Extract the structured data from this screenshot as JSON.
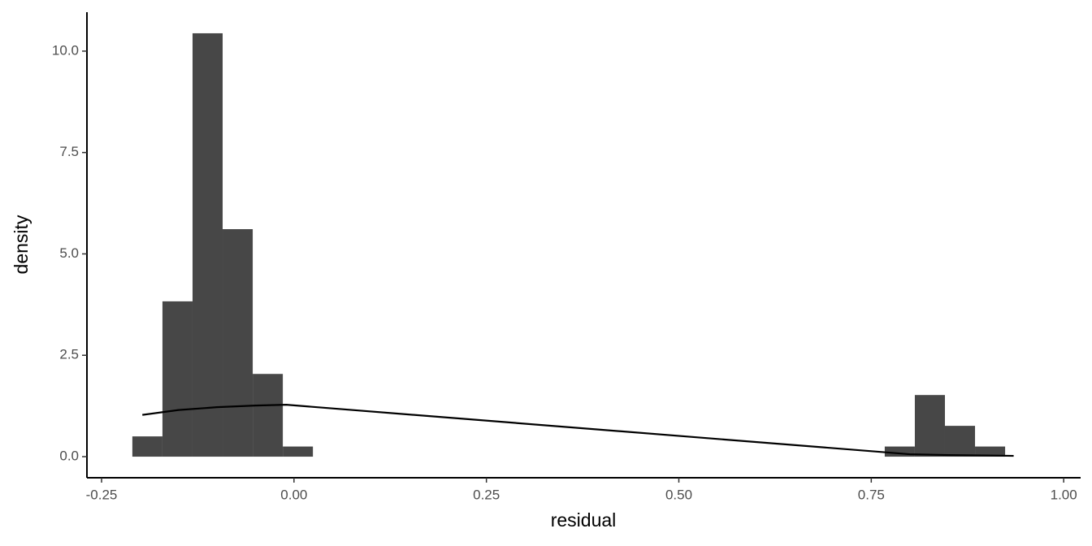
{
  "chart_data": {
    "type": "histogram",
    "x_label": "residual",
    "y_label": "density",
    "bins": [
      -0.21,
      -0.1709,
      -0.1318,
      -0.0927,
      -0.0536,
      -0.0145,
      0.0246,
      0.0637,
      0.1028,
      0.1419,
      0.181,
      0.2201,
      0.2592,
      0.2983,
      0.3374,
      0.3765,
      0.4156,
      0.4547,
      0.4938,
      0.5329,
      0.572,
      0.6111,
      0.6502,
      0.6893,
      0.7284,
      0.7675,
      0.8066,
      0.8457,
      0.8848,
      0.9239,
      0.963
    ],
    "values": [
      0.5,
      3.83,
      10.44,
      5.61,
      2.04,
      0.25,
      0,
      0,
      0,
      0,
      0,
      0,
      0,
      0,
      0,
      0,
      0,
      0,
      0,
      0,
      0,
      0,
      0,
      0,
      0,
      0.25,
      1.52,
      0.76,
      0.25,
      0
    ],
    "color": "#474747",
    "overlay": {
      "type": "line",
      "color": "#000000",
      "x": [
        -0.197,
        -0.15,
        -0.1,
        -0.05,
        -0.01,
        0.8,
        0.85,
        0.9,
        0.935
      ],
      "values": [
        1.03,
        1.15,
        1.22,
        1.26,
        1.28,
        0.06,
        0.04,
        0.03,
        0.02
      ]
    },
    "xlim": [
      -0.269,
      1.022
    ],
    "ylim": [
      -0.52,
      10.96
    ],
    "xticks": [
      -0.25,
      {
        "value": 0,
        "label": "0.00"
      },
      0.25,
      {
        "value": 0.5,
        "label": "0.50"
      },
      0.75,
      {
        "value": 1,
        "label": "1.00"
      }
    ],
    "yticks": [
      {
        "value": 0,
        "label": "0.0"
      },
      2.5,
      {
        "value": 5,
        "label": "5.0"
      },
      7.5,
      {
        "value": 10,
        "label": "10.0"
      }
    ],
    "grid": false
  }
}
